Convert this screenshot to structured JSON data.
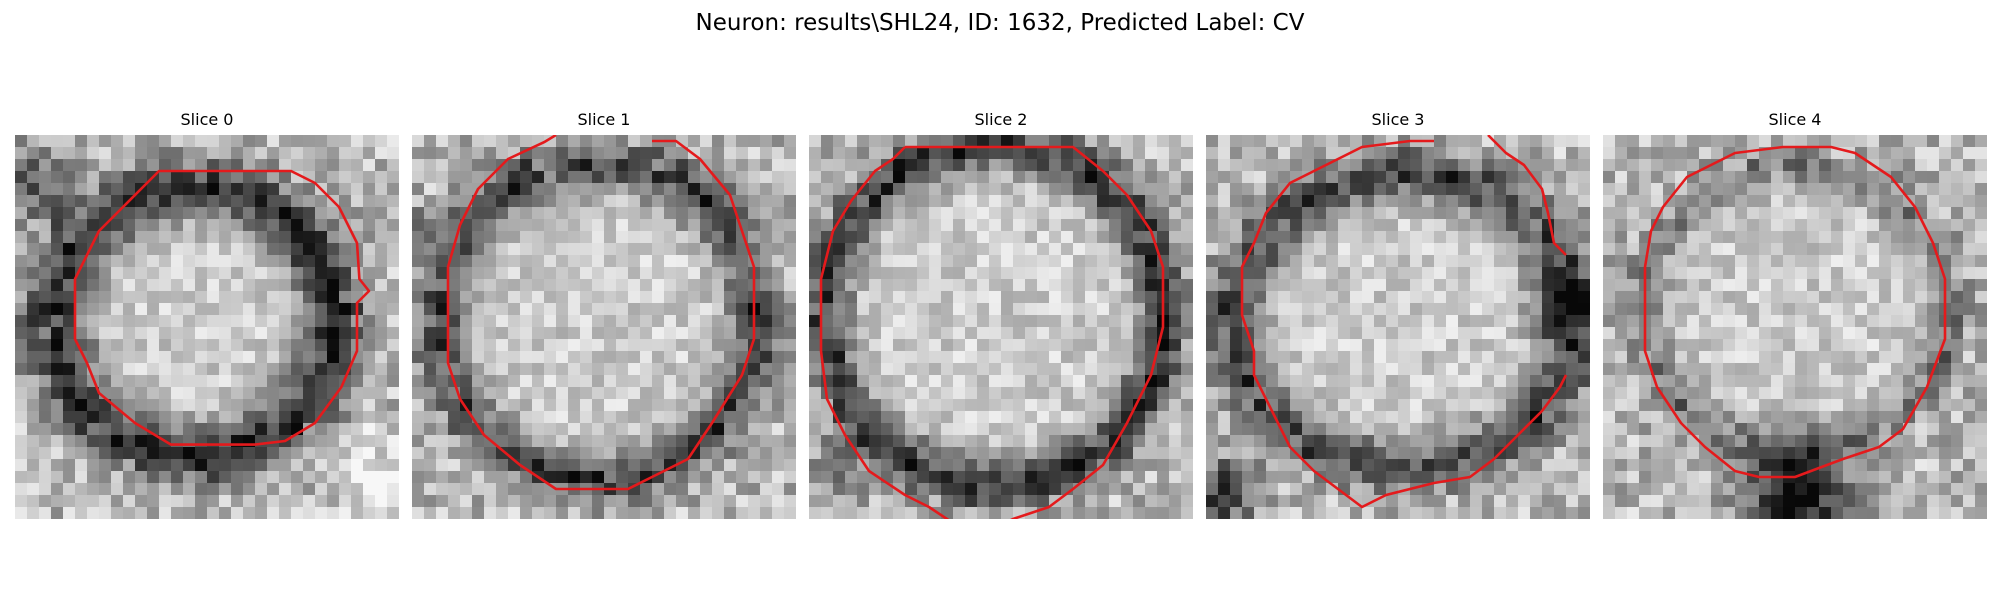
{
  "figure": {
    "title": "Neuron: results\\SHL24, ID: 1632, Predicted Label: CV",
    "contour_color": "#e41a1c",
    "colormap": "grayscale",
    "panels": [
      {
        "title": "Slice 0"
      },
      {
        "title": "Slice 1"
      },
      {
        "title": "Slice 2"
      },
      {
        "title": "Slice 3"
      },
      {
        "title": "Slice 4"
      }
    ]
  }
}
